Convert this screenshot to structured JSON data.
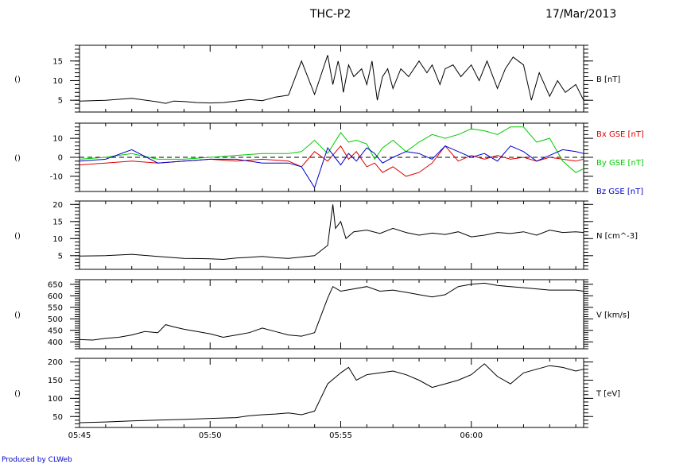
{
  "header": {
    "title": "THC-P2",
    "date": "17/Mar/2013"
  },
  "footer": {
    "producer": "Produced by CLWeb"
  },
  "chart_data": [
    {
      "type": "line",
      "panel_label": "()",
      "ylim": [
        2,
        19
      ],
      "yticks": [
        5,
        10,
        15
      ],
      "series": [
        {
          "name": "B [nT]",
          "color": "#000000",
          "x": [
            0,
            1,
            2,
            3,
            3.3,
            3.6,
            4,
            4.5,
            5,
            5.5,
            6,
            6.5,
            7,
            7.5,
            8,
            8.5,
            9,
            9.5,
            9.7,
            9.9,
            10,
            10.1,
            10.3,
            10.5,
            10.8,
            11,
            11.2,
            11.4,
            11.6,
            11.8,
            12,
            12.3,
            12.6,
            13,
            13.3,
            13.5,
            13.8,
            14,
            14.3,
            14.6,
            15,
            15.3,
            15.6,
            16,
            16.3,
            16.6,
            17,
            17.3,
            17.6,
            18,
            18.3,
            18.6,
            19,
            19.3
          ],
          "y": [
            4.8,
            5,
            5.5,
            4.6,
            4.2,
            4.8,
            4.7,
            4.4,
            4.3,
            4.4,
            4.8,
            5.2,
            4.9,
            5.8,
            6.3,
            15,
            6.5,
            16.5,
            9,
            15,
            12,
            7,
            14,
            11,
            13,
            9,
            15,
            5,
            11,
            13,
            8,
            13,
            11,
            15,
            12,
            14,
            9,
            13,
            14,
            11,
            14,
            10,
            15,
            8,
            13,
            16,
            14,
            5,
            12,
            6,
            10,
            7,
            9,
            5
          ]
        }
      ],
      "right_labels": [
        {
          "text": "B [nT]",
          "color": "#000000"
        }
      ]
    },
    {
      "type": "line",
      "panel_label": "()",
      "ylim": [
        -18,
        18
      ],
      "yticks": [
        -10,
        0,
        10
      ],
      "zero_line": true,
      "series": [
        {
          "name": "Bx GSE [nT]",
          "color": "#dd0000",
          "x": [
            0,
            1,
            2,
            3,
            4,
            5,
            6,
            7,
            8,
            8.5,
            9,
            9.5,
            10,
            10.3,
            10.6,
            11,
            11.3,
            11.6,
            12,
            12.5,
            13,
            13.5,
            14,
            14.5,
            15,
            15.5,
            16,
            16.5,
            17,
            17.5,
            18,
            18.5,
            19,
            19.3
          ],
          "y": [
            -4,
            -3,
            -2,
            -3,
            -2,
            -1,
            -2,
            -1,
            -2,
            -5,
            3,
            -2,
            6,
            -1,
            3,
            -5,
            -3,
            -8,
            -5,
            -10,
            -8,
            -3,
            6,
            -2,
            1,
            -1,
            1,
            -1,
            0,
            -2,
            0,
            -1,
            -2,
            -1
          ]
        },
        {
          "name": "By GSE [nT]",
          "color": "#00cc00",
          "x": [
            0,
            1,
            2,
            3,
            4,
            5,
            6,
            7,
            8,
            8.5,
            9,
            9.5,
            10,
            10.3,
            10.6,
            11,
            11.3,
            11.6,
            12,
            12.5,
            13,
            13.5,
            14,
            14.5,
            15,
            15.5,
            16,
            16.5,
            17,
            17.5,
            18,
            18.5,
            19,
            19.3
          ],
          "y": [
            -1,
            0,
            2,
            -1,
            -1,
            0,
            1,
            2,
            2,
            3,
            9,
            2,
            13,
            8,
            9,
            7,
            -1,
            5,
            9,
            3,
            8,
            12,
            10,
            12,
            15,
            14,
            12,
            16,
            16,
            8,
            10,
            -2,
            -8,
            -6
          ]
        },
        {
          "name": "Bz GSE [nT]",
          "color": "#0000cc",
          "x": [
            0,
            1,
            2,
            3,
            4,
            5,
            6,
            7,
            8,
            8.5,
            9,
            9.5,
            10,
            10.3,
            10.6,
            11,
            11.3,
            11.6,
            12,
            12.5,
            13,
            13.5,
            14,
            14.5,
            15,
            15.5,
            16,
            16.5,
            17,
            17.5,
            18,
            18.5,
            19,
            19.3
          ],
          "y": [
            -2,
            -1,
            4,
            -3,
            -2,
            -1,
            -1,
            -3,
            -3,
            -5,
            -16,
            5,
            -4,
            2,
            -2,
            5,
            2,
            -3,
            0,
            3,
            2,
            -1,
            6,
            3,
            0,
            2,
            -2,
            6,
            3,
            -2,
            1,
            4,
            3,
            2
          ]
        }
      ],
      "right_labels": [
        {
          "text": "Bx GSE [nT]",
          "color": "#dd0000"
        },
        {
          "text": "By GSE [nT]",
          "color": "#00cc00"
        },
        {
          "text": "Bz GSE [nT]",
          "color": "#0000cc"
        }
      ]
    },
    {
      "type": "line",
      "panel_label": "()",
      "ylim": [
        1,
        21
      ],
      "yticks": [
        5,
        10,
        15,
        20
      ],
      "series": [
        {
          "name": "N [cm^-3]",
          "color": "#000000",
          "x": [
            0,
            1,
            2,
            3,
            4,
            5,
            5.5,
            6,
            6.5,
            7,
            7.5,
            8,
            8.5,
            9,
            9.5,
            9.7,
            9.8,
            10,
            10.2,
            10.5,
            11,
            11.5,
            12,
            12.5,
            13,
            13.5,
            14,
            14.5,
            15,
            15.5,
            16,
            16.5,
            17,
            17.5,
            18,
            18.5,
            19,
            19.3
          ],
          "y": [
            4.9,
            5,
            5.4,
            4.8,
            4.2,
            4.1,
            3.9,
            4.3,
            4.5,
            4.8,
            4.4,
            4.2,
            4.6,
            5,
            8,
            20,
            13,
            15,
            10,
            12,
            12.5,
            11.5,
            13,
            11.8,
            11,
            11.6,
            11.2,
            12,
            10.5,
            11,
            11.8,
            11.5,
            12,
            11,
            12.5,
            11.8,
            12,
            11.8
          ]
        }
      ],
      "right_labels": [
        {
          "text": "N [cm^-3]",
          "color": "#000000"
        }
      ]
    },
    {
      "type": "line",
      "panel_label": "()",
      "ylim": [
        370,
        670
      ],
      "yticks": [
        400,
        450,
        500,
        550,
        600,
        650
      ],
      "series": [
        {
          "name": "V [km/s]",
          "color": "#000000",
          "x": [
            0,
            0.5,
            1,
            1.5,
            2,
            2.5,
            3,
            3.3,
            3.6,
            4,
            4.5,
            5,
            5.5,
            6,
            6.5,
            7,
            7.5,
            8,
            8.5,
            9,
            9.5,
            9.7,
            10,
            10.5,
            11,
            11.5,
            12,
            12.5,
            13,
            13.5,
            14,
            14.5,
            15,
            15.5,
            16,
            16.5,
            17,
            17.5,
            18,
            18.5,
            19,
            19.3
          ],
          "y": [
            410,
            408,
            415,
            420,
            430,
            445,
            440,
            475,
            465,
            455,
            445,
            435,
            420,
            430,
            440,
            460,
            445,
            430,
            425,
            440,
            590,
            640,
            620,
            630,
            640,
            620,
            625,
            615,
            605,
            595,
            605,
            640,
            650,
            655,
            645,
            640,
            635,
            630,
            625,
            625,
            625,
            620
          ]
        }
      ],
      "right_labels": [
        {
          "text": "V [km/s]",
          "color": "#000000"
        }
      ]
    },
    {
      "type": "line",
      "panel_label": "()",
      "ylim": [
        20,
        210
      ],
      "yticks": [
        50,
        100,
        150,
        200
      ],
      "series": [
        {
          "name": "T [eV]",
          "color": "#000000",
          "x": [
            0,
            1,
            2,
            3,
            4,
            5,
            6,
            6.5,
            7,
            7.5,
            8,
            8.5,
            9,
            9.5,
            10,
            10.3,
            10.6,
            11,
            11.5,
            12,
            12.5,
            13,
            13.5,
            14,
            14.5,
            15,
            15.5,
            16,
            16.5,
            17,
            17.5,
            18,
            18.5,
            19,
            19.3
          ],
          "y": [
            33,
            35,
            38,
            40,
            42,
            45,
            47,
            52,
            55,
            57,
            60,
            55,
            65,
            140,
            170,
            185,
            150,
            165,
            170,
            175,
            165,
            150,
            130,
            140,
            150,
            165,
            195,
            160,
            140,
            170,
            180,
            190,
            185,
            175,
            180
          ]
        }
      ],
      "right_labels": [
        {
          "text": "T [eV]",
          "color": "#000000"
        }
      ]
    }
  ],
  "x_axis": {
    "unit": "minutes after 05:45",
    "ticks": [
      {
        "x": 0,
        "label": "05:45"
      },
      {
        "x": 5,
        "label": "05:50"
      },
      {
        "x": 10,
        "label": "05:55"
      },
      {
        "x": 15,
        "label": "06:00"
      }
    ],
    "xlim": [
      0,
      19.3
    ]
  }
}
